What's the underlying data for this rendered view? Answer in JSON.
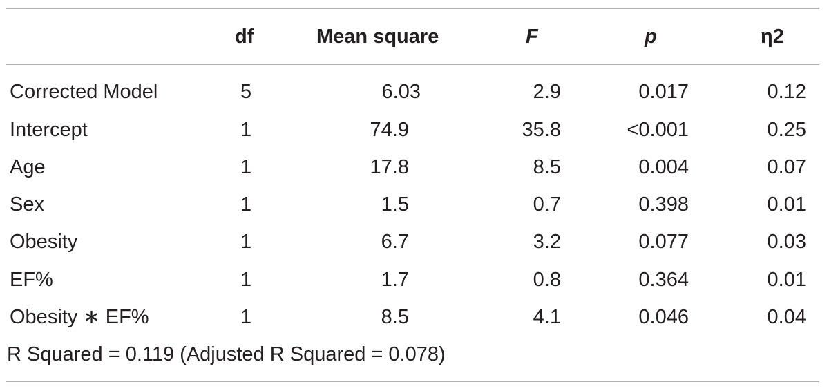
{
  "table": {
    "headers": {
      "label": "",
      "df": "df",
      "mean_square": "Mean square",
      "f": "F",
      "p": "p",
      "eta2": "η2"
    },
    "rows": [
      {
        "label": "Corrected Model",
        "df": "5",
        "mean_square": "6.03",
        "f": "2.9",
        "p": "0.017",
        "eta2": "0.12"
      },
      {
        "label": "Intercept",
        "df": "1",
        "mean_square": "74.9",
        "f": "35.8",
        "p": "<0.001",
        "eta2": "0.25"
      },
      {
        "label": "Age",
        "df": "1",
        "mean_square": "17.8",
        "f": "8.5",
        "p": "0.004",
        "eta2": "0.07"
      },
      {
        "label": "Sex",
        "df": "1",
        "mean_square": "1.5",
        "f": "0.7",
        "p": "0.398",
        "eta2": "0.01"
      },
      {
        "label": "Obesity",
        "df": "1",
        "mean_square": "6.7",
        "f": "3.2",
        "p": "0.077",
        "eta2": "0.03"
      },
      {
        "label": "EF%",
        "df": "1",
        "mean_square": "1.7",
        "f": "0.8",
        "p": "0.364",
        "eta2": "0.01"
      },
      {
        "label": "Obesity ∗ EF%",
        "df": "1",
        "mean_square": "8.5",
        "f": "4.1",
        "p": "0.046",
        "eta2": "0.04"
      }
    ],
    "footnote": "R Squared = 0.119 (Adjusted R Squared = 0.078)"
  }
}
